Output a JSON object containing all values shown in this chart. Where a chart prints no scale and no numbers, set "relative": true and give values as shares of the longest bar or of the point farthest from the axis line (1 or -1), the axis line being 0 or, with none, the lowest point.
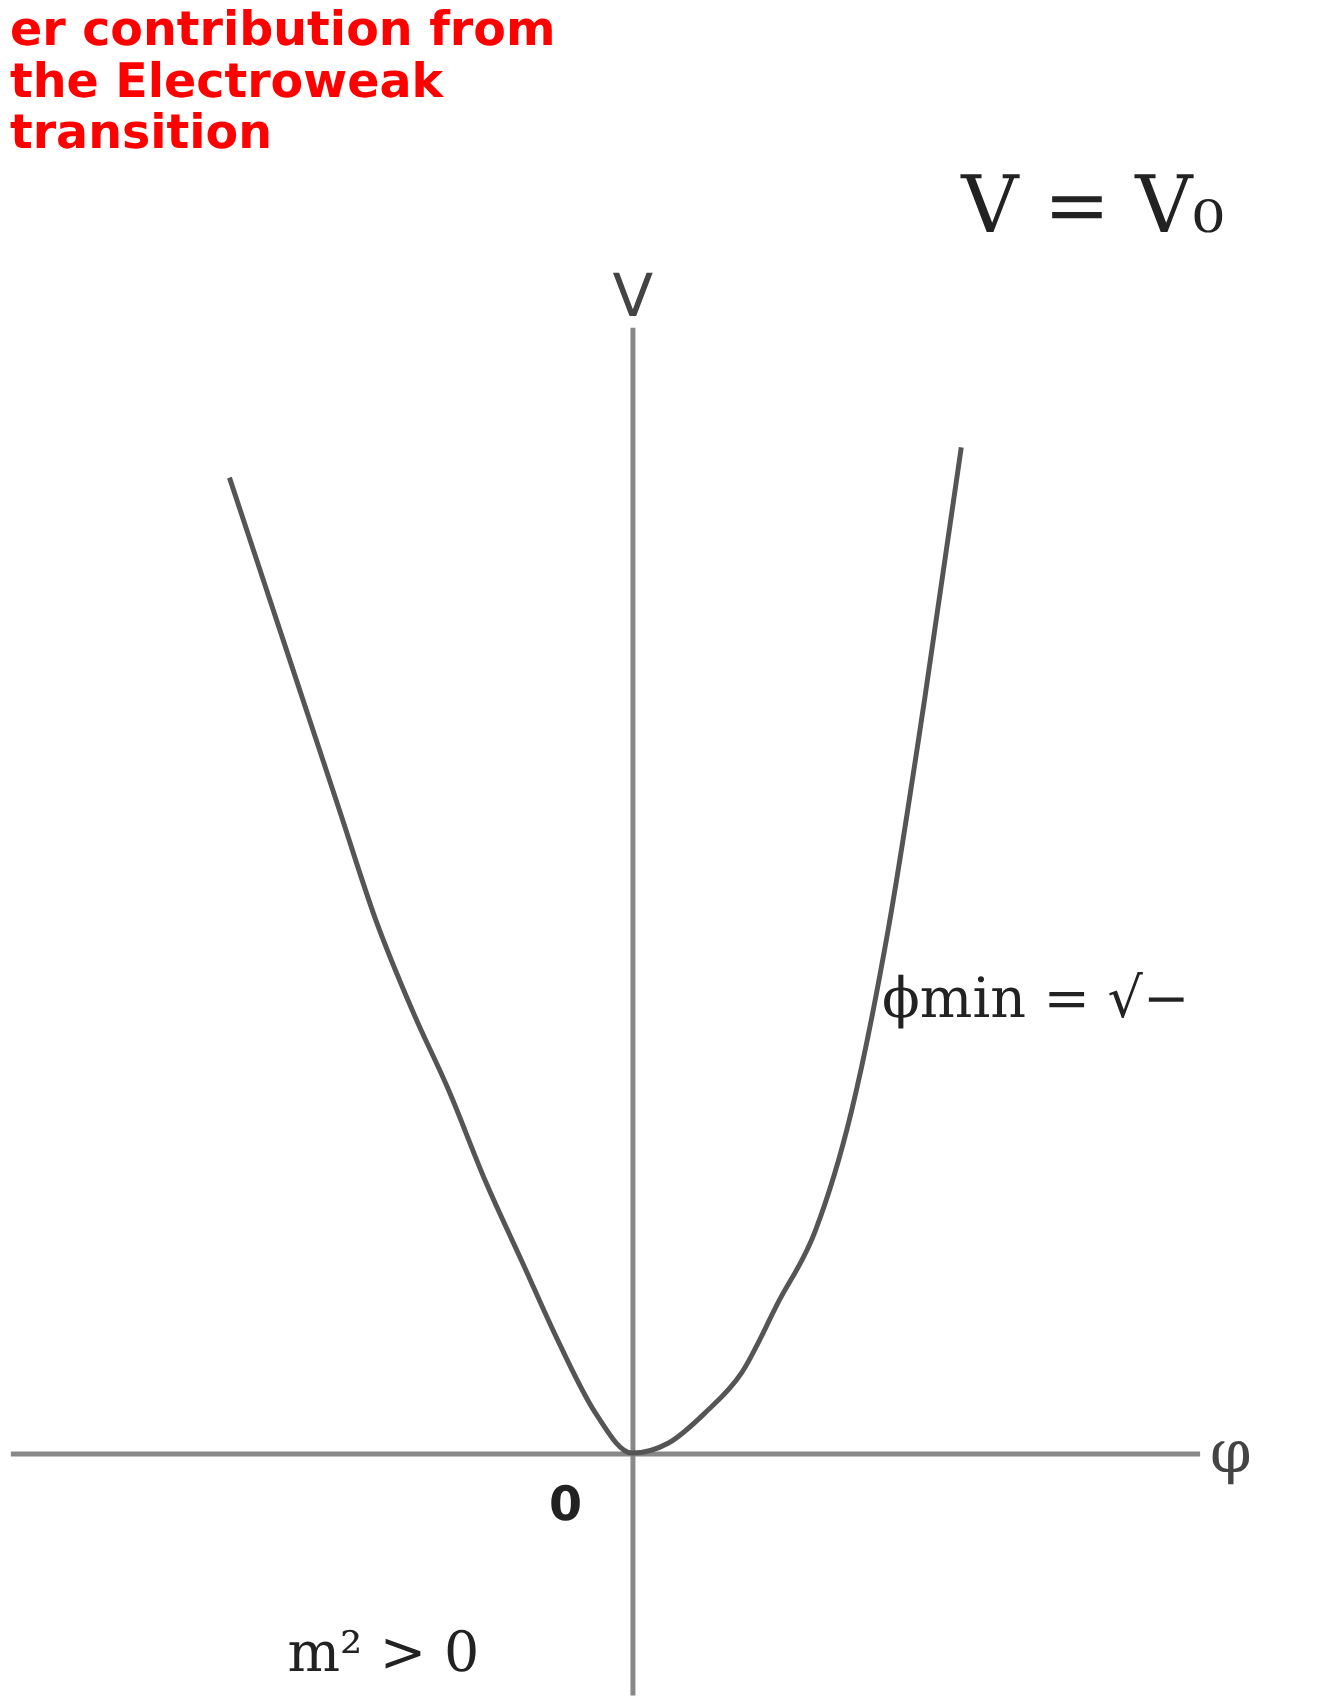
{
  "chart_data": {
    "type": "line",
    "relative": true,
    "title": "er contribution from the Electroweak transition",
    "xlabel": "φ",
    "ylabel": "V",
    "categories": [
      null,
      null,
      null,
      null,
      null,
      null,
      null,
      null,
      null,
      null,
      null,
      null,
      null,
      null,
      null,
      null,
      null,
      null,
      null,
      null,
      null
    ],
    "series": [
      {
        "color": "#555555",
        "values": [
          0.97,
          0.86,
          0.75,
          0.64,
          0.53,
          0.44,
          0.36,
          0.27,
          0.19,
          0.11,
          0.04,
          0.0,
          0.01,
          0.04,
          0.08,
          0.15,
          0.22,
          0.34,
          0.52,
          0.75,
          1.0
        ]
      }
    ],
    "annotations": [
      "V = V₀",
      "ϕmin = √−",
      "m² > 0",
      "0"
    ],
    "legend": false,
    "grid": false,
    "marker": "none",
    "line_style": "solid"
  }
}
